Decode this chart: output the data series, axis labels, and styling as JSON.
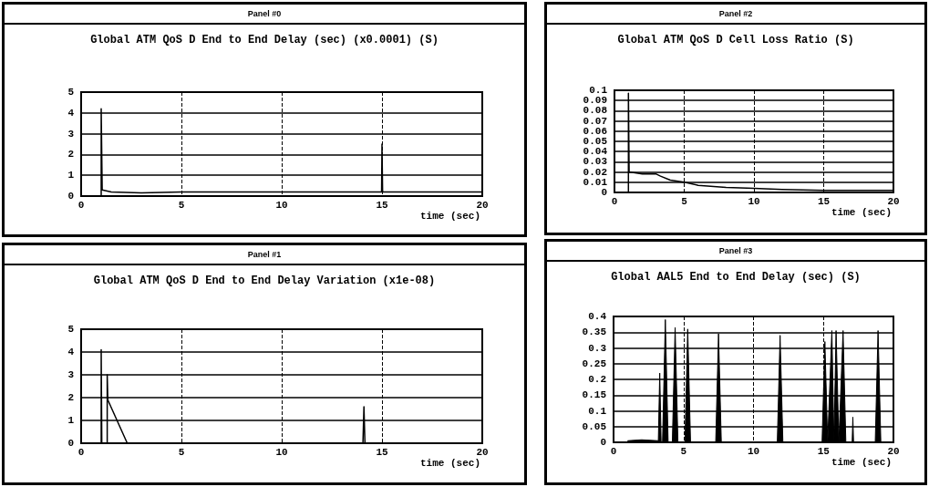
{
  "chart_data": [
    {
      "type": "line",
      "subtitle": "Panel #0",
      "title": "Global ATM QoS D End to End Delay (sec) (x0.0001) (S)",
      "xlabel": "time (sec)",
      "color": "#000000",
      "grid": true,
      "xlim": [
        0,
        20
      ],
      "xticks": [
        0,
        5,
        10,
        15,
        20
      ],
      "ylim": [
        0,
        5
      ],
      "yticks": [
        0,
        1,
        2,
        3,
        4,
        5
      ],
      "x": [
        1,
        1,
        1.05,
        1.5,
        3,
        5,
        10,
        14.98,
        15,
        15.03,
        20
      ],
      "values": [
        0,
        4.2,
        0.3,
        0.2,
        0.15,
        0.2,
        0.2,
        0.2,
        2.5,
        0.2,
        0.2
      ]
    },
    {
      "type": "line",
      "subtitle": "Panel #2",
      "title": "Global ATM QoS D Cell Loss Ratio (S)",
      "xlabel": "time (sec)",
      "color": "#000000",
      "grid": true,
      "xlim": [
        0,
        20
      ],
      "xticks": [
        0,
        5,
        10,
        15,
        20
      ],
      "ylim": [
        0,
        0.1
      ],
      "yticks": [
        0,
        0.01,
        0.02,
        0.03,
        0.04,
        0.05,
        0.06,
        0.07,
        0.08,
        0.09,
        0.1
      ],
      "x": [
        1,
        1,
        1.05,
        2,
        3,
        3.3,
        4,
        5,
        6,
        8,
        10,
        12,
        15,
        20
      ],
      "values": [
        0,
        0.097,
        0.02,
        0.018,
        0.018,
        0.016,
        0.012,
        0.01,
        0.007,
        0.005,
        0.004,
        0.003,
        0.002,
        0.002
      ]
    },
    {
      "type": "line",
      "subtitle": "Panel #1",
      "title": "Global ATM QoS D End to End Delay Variation (x1e-08)",
      "xlabel": "time (sec)",
      "color": "#000000",
      "grid": true,
      "xlim": [
        0,
        20
      ],
      "xticks": [
        0,
        5,
        10,
        15,
        20
      ],
      "ylim": [
        0,
        5
      ],
      "yticks": [
        0,
        1,
        2,
        3,
        4,
        5
      ],
      "x": [
        1,
        1,
        1.03,
        1.3,
        1.3,
        1.33,
        2.3,
        14.05,
        14.1,
        14.15,
        20
      ],
      "values": [
        0,
        4.1,
        0,
        0,
        3.0,
        1.9,
        0,
        0,
        1.6,
        0,
        0
      ]
    },
    {
      "type": "area",
      "subtitle": "Panel #3",
      "title": "Global AAL5 End to End Delay (sec) (S)",
      "xlabel": "time (sec)",
      "color": "#000000",
      "grid": true,
      "xlim": [
        0,
        20
      ],
      "xticks": [
        0,
        5,
        10,
        15,
        20
      ],
      "ylim": [
        0,
        0.4
      ],
      "yticks": [
        0,
        0.05,
        0.1,
        0.15,
        0.2,
        0.25,
        0.3,
        0.35,
        0.4
      ],
      "x": [
        1,
        2,
        3.2,
        3.3,
        3.4,
        3.5,
        3.7,
        3.9,
        4.2,
        4.4,
        4.6,
        5.1,
        5.3,
        5.5,
        7.3,
        7.5,
        7.7,
        11.7,
        11.9,
        12.1,
        14.9,
        15.1,
        15.3,
        15.6,
        15.75,
        15.9,
        16.1,
        16.4,
        16.6,
        17.05,
        17.1,
        17.15,
        18.7,
        18.9,
        19.1,
        20
      ],
      "values": [
        0.005,
        0.008,
        0.005,
        0.22,
        0,
        0,
        0.39,
        0,
        0,
        0.365,
        0,
        0,
        0.36,
        0,
        0,
        0.345,
        0,
        0,
        0.34,
        0,
        0,
        0.32,
        0,
        0.355,
        0,
        0.355,
        0,
        0.355,
        0,
        0,
        0.08,
        0,
        0,
        0.355,
        0,
        0
      ]
    }
  ]
}
